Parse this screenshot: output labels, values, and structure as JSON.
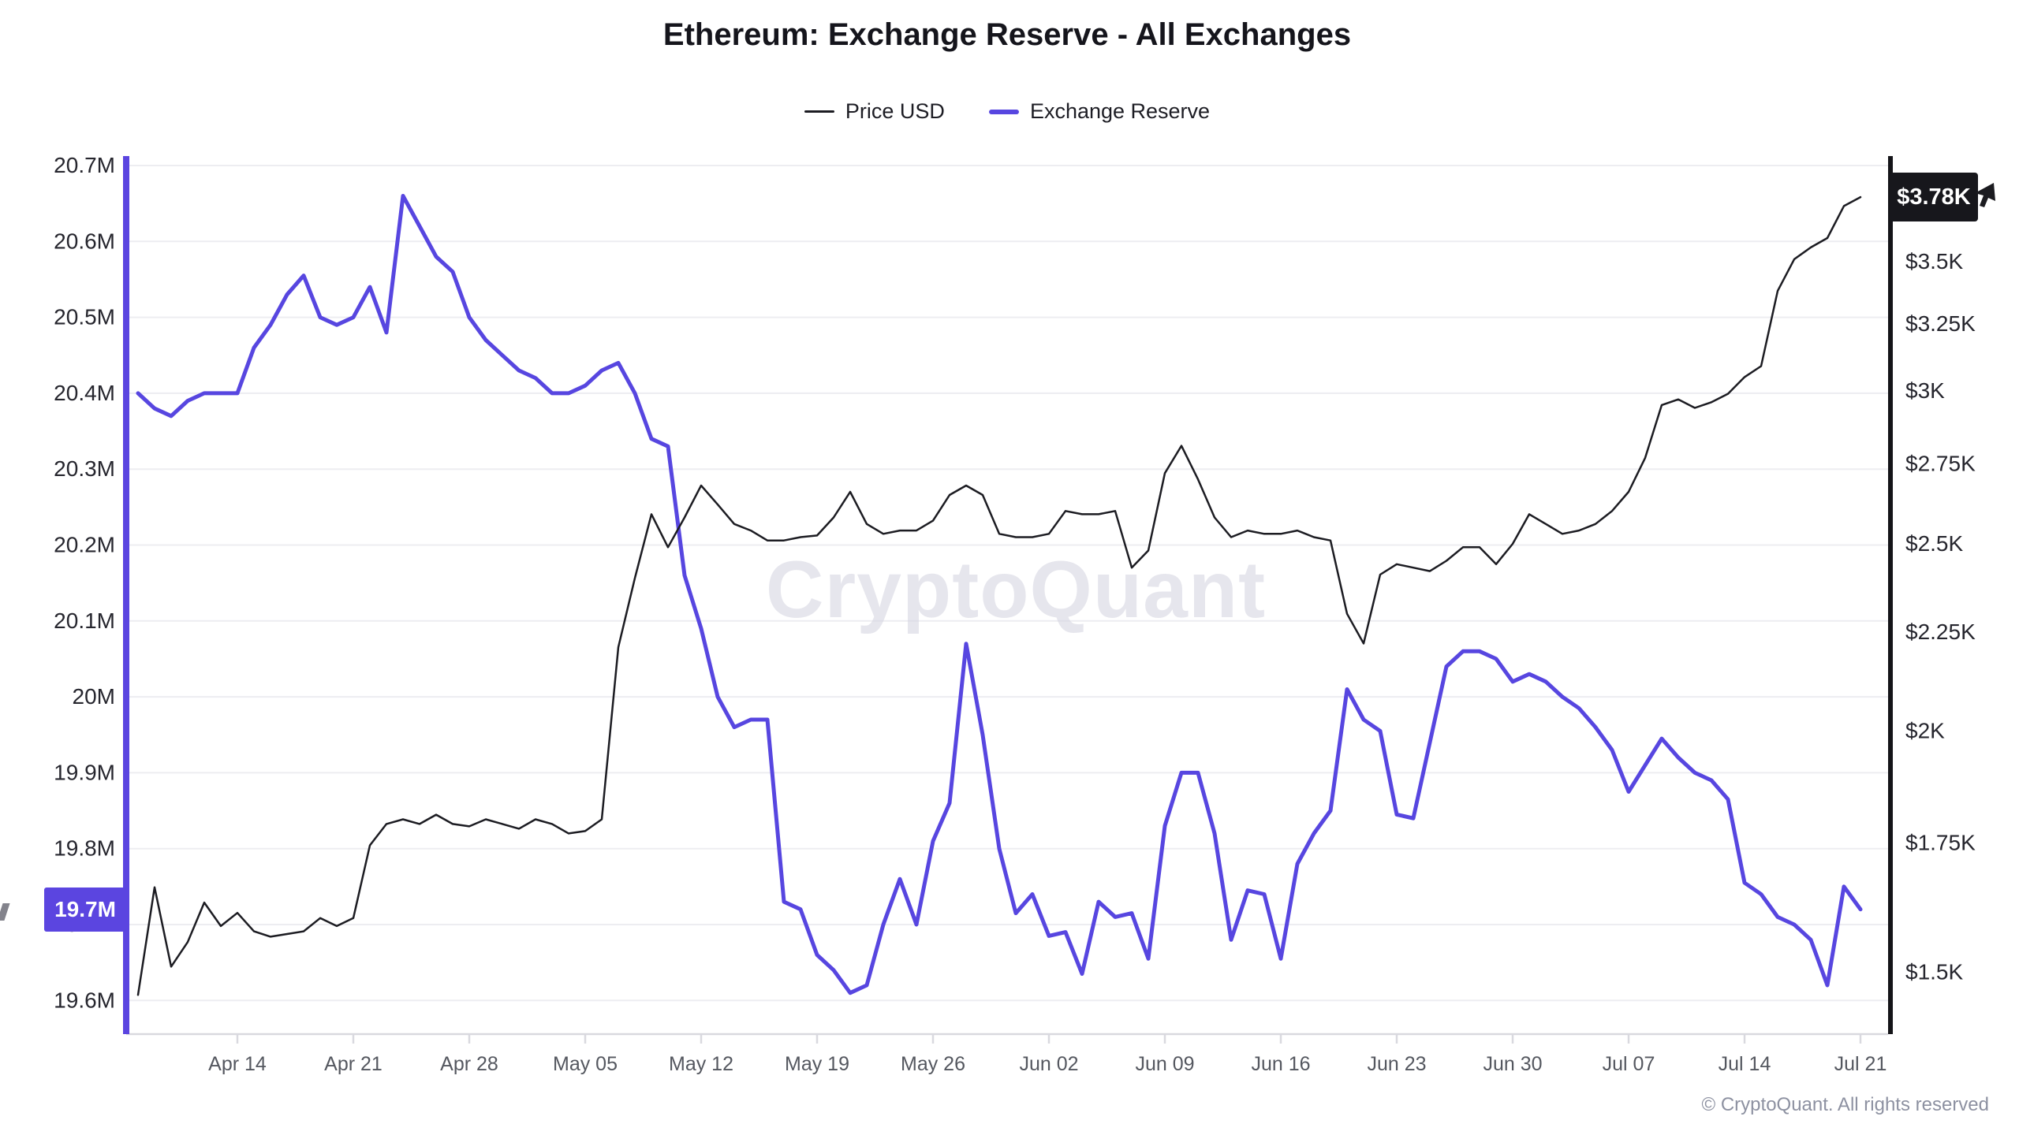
{
  "title": "Ethereum: Exchange Reserve - All Exchanges",
  "legend": {
    "price_label": "Price USD",
    "reserve_label": "Exchange Reserve"
  },
  "watermark": "CryptoQuant",
  "footer": "© CryptoQuant. All rights reserved",
  "badges": {
    "reserve_last_label": "19.7M",
    "price_last_label": "$3.78K",
    "reserve_badge_color": "#5b45e0",
    "price_badge_color": "#17171c"
  },
  "colors": {
    "price_line": "#1c1c22",
    "reserve_line": "#5746e0",
    "grid": "#ededf1",
    "axis_bottom": "#d9d9df",
    "date_label": "#54575f",
    "value_label": "#26262e",
    "footer_text": "#8d91a1",
    "watermark_fill": "#d3d3df"
  },
  "chart_data": {
    "type": "line",
    "title": "Ethereum: Exchange Reserve - All Exchanges",
    "grid": "horizontal-only",
    "legend_position": "top-center",
    "x_axis": {
      "tick_labels": [
        "Apr 14",
        "Apr 21",
        "Apr 28",
        "May 05",
        "May 12",
        "May 19",
        "May 26",
        "Jun 02",
        "Jun 09",
        "Jun 16",
        "Jun 23",
        "Jun 30",
        "Jul 07",
        "Jul 14",
        "Jul 21"
      ],
      "tick_day_offsets": [
        0,
        7,
        14,
        21,
        28,
        35,
        42,
        49,
        56,
        63,
        70,
        77,
        84,
        91,
        98
      ],
      "start_date": "Apr 08",
      "end_date": "Jul 21"
    },
    "left_axis": {
      "series": "Exchange Reserve",
      "unit": "M ETH",
      "scale": "linear",
      "tick_values": [
        20.7,
        20.6,
        20.5,
        20.4,
        20.3,
        20.2,
        20.1,
        20.0,
        19.9,
        19.8,
        19.7,
        19.6
      ],
      "tick_labels": [
        "20.7M",
        "20.6M",
        "20.5M",
        "20.4M",
        "20.3M",
        "20.2M",
        "20.1M",
        "20M",
        "19.9M",
        "19.8M",
        "19.7M",
        "19.6M"
      ],
      "range": [
        19.55,
        20.72
      ]
    },
    "right_axis": {
      "series": "Price USD",
      "unit": "USD thousands",
      "scale": "log",
      "tick_values": [
        3.5,
        3.25,
        3.0,
        2.75,
        2.5,
        2.25,
        2.0,
        1.75,
        1.5
      ],
      "tick_labels": [
        "$3.5K",
        "$3.25K",
        "$3K",
        "$2.75K",
        "$2.5K",
        "$2.25K",
        "$2K",
        "$1.75K",
        "$1.5K"
      ],
      "range": [
        1.42,
        3.85
      ]
    },
    "series": [
      {
        "name": "Exchange Reserve",
        "axis": "left",
        "color": "#5746e0",
        "stroke_width": 5,
        "start_day_offset": -6,
        "last_value_label": "19.7M",
        "values": [
          20.4,
          20.38,
          20.37,
          20.39,
          20.4,
          20.4,
          20.4,
          20.46,
          20.49,
          20.53,
          20.555,
          20.5,
          20.49,
          20.5,
          20.54,
          20.48,
          20.66,
          20.62,
          20.58,
          20.56,
          20.5,
          20.47,
          20.45,
          20.43,
          20.42,
          20.4,
          20.4,
          20.41,
          20.43,
          20.44,
          20.4,
          20.34,
          20.33,
          20.16,
          20.09,
          20.0,
          19.96,
          19.97,
          19.97,
          19.73,
          19.72,
          19.66,
          19.64,
          19.61,
          19.62,
          19.7,
          19.76,
          19.7,
          19.81,
          19.86,
          20.07,
          19.95,
          19.8,
          19.715,
          19.74,
          19.685,
          19.69,
          19.635,
          19.73,
          19.71,
          19.715,
          19.655,
          19.83,
          19.9,
          19.9,
          19.82,
          19.68,
          19.745,
          19.74,
          19.655,
          19.78,
          19.82,
          19.85,
          20.01,
          19.97,
          19.955,
          19.845,
          19.84,
          19.94,
          20.04,
          20.06,
          20.06,
          20.05,
          20.02,
          20.03,
          20.02,
          20.0,
          19.985,
          19.96,
          19.93,
          19.875,
          19.91,
          19.945,
          19.92,
          19.9,
          19.89,
          19.865,
          19.755,
          19.74,
          19.71,
          19.7,
          19.68,
          19.62,
          19.75,
          19.72
        ]
      },
      {
        "name": "Price USD",
        "axis": "right",
        "color": "#1c1c22",
        "stroke_width": 2.5,
        "start_day_offset": -6,
        "last_value_label": "$3.78K",
        "values": [
          1.46,
          1.66,
          1.51,
          1.555,
          1.63,
          1.585,
          1.61,
          1.575,
          1.565,
          1.57,
          1.575,
          1.6,
          1.585,
          1.6,
          1.745,
          1.79,
          1.8,
          1.79,
          1.81,
          1.79,
          1.785,
          1.8,
          1.79,
          1.78,
          1.8,
          1.79,
          1.77,
          1.775,
          1.8,
          2.21,
          2.4,
          2.59,
          2.49,
          2.58,
          2.68,
          2.62,
          2.56,
          2.54,
          2.51,
          2.51,
          2.52,
          2.525,
          2.58,
          2.66,
          2.56,
          2.53,
          2.54,
          2.54,
          2.57,
          2.65,
          2.68,
          2.65,
          2.53,
          2.52,
          2.52,
          2.53,
          2.6,
          2.59,
          2.59,
          2.6,
          2.43,
          2.48,
          2.72,
          2.81,
          2.7,
          2.58,
          2.52,
          2.54,
          2.53,
          2.53,
          2.54,
          2.52,
          2.51,
          2.3,
          2.22,
          2.41,
          2.44,
          2.43,
          2.42,
          2.45,
          2.49,
          2.49,
          2.44,
          2.5,
          2.59,
          2.56,
          2.53,
          2.54,
          2.56,
          2.6,
          2.66,
          2.77,
          2.95,
          2.97,
          2.94,
          2.96,
          2.99,
          3.05,
          3.09,
          3.38,
          3.51,
          3.56,
          3.6,
          3.74,
          3.78
        ]
      }
    ]
  }
}
